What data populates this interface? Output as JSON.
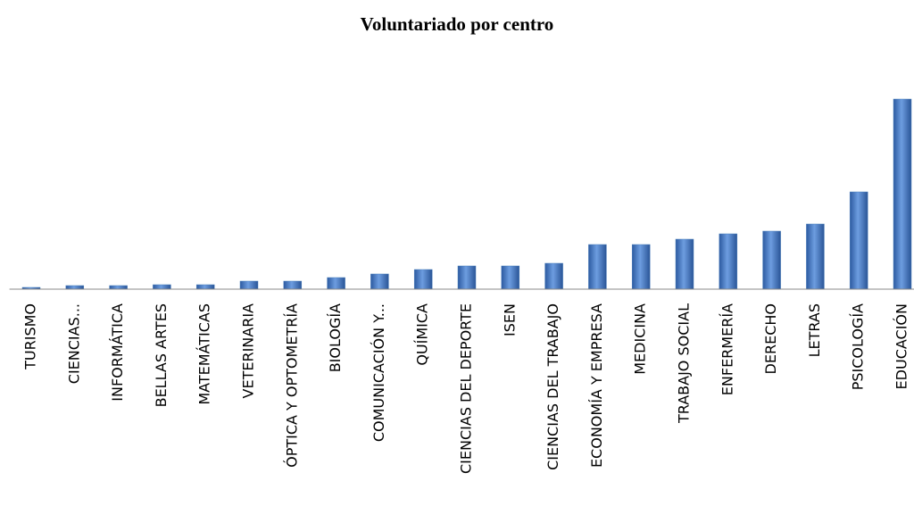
{
  "chart_data": {
    "type": "bar",
    "title": "Voluntariado por centro",
    "categories": [
      "TURISMO",
      "CIENCIAS...",
      "INFORMÁTICA",
      "BELLAS ARTES",
      "MATEMÁTICAS",
      "VETERINARIA",
      "ÓPTICA Y OPTOMETRÍA",
      "BIOLOGÍA",
      "COMUNICACIÓN Y...",
      "QUÍMICA",
      "CIENCIAS DEL DEPORTE",
      "ISEN",
      "CIENCIAS DEL TRABAJO",
      "ECONOMÍA Y EMPRESA",
      "MEDICINA",
      "TRABAJO SOCIAL",
      "ENFERMERÍA",
      "DERECHO",
      "LETRAS",
      "PSICOLOGÍA",
      "EDUCACIÓN"
    ],
    "values": [
      2,
      4,
      4,
      5,
      5,
      9,
      9,
      13,
      17,
      22,
      26,
      26,
      29,
      50,
      50,
      56,
      62,
      65,
      73,
      109,
      213
    ],
    "color": "#4f81bd"
  }
}
